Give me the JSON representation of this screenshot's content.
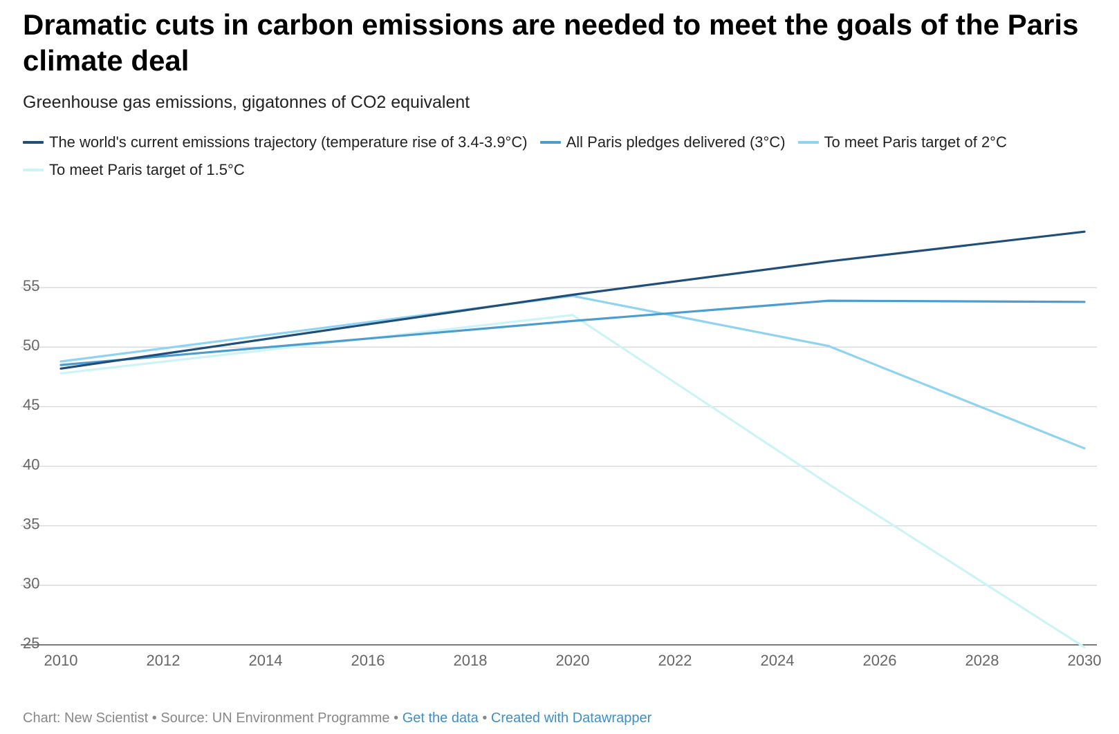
{
  "header": {
    "title": "Dramatic cuts in carbon emissions are needed to meet the goals of the Paris climate deal",
    "subtitle": "Greenhouse gas emissions, gigatonnes of CO2 equivalent"
  },
  "footer": {
    "chart_credit": "Chart: New Scientist",
    "source": "Source: UN Environment Programme",
    "get_data_link": "Get the data",
    "created_with_link": "Created with Datawrapper",
    "separator": "•"
  },
  "chart_data": {
    "type": "line",
    "x_ticks": [
      2010,
      2012,
      2014,
      2016,
      2018,
      2020,
      2022,
      2024,
      2026,
      2028,
      2030
    ],
    "y_ticks": [
      25,
      30,
      35,
      40,
      45,
      50,
      55
    ],
    "xlim": [
      2010,
      2030
    ],
    "ylim": [
      25,
      60
    ],
    "grid": true,
    "legend_position": "top",
    "series": [
      {
        "name": "The world's current emissions trajectory (temperature rise of 3.4-3.9°C)",
        "color": "#1f4e79",
        "x": [
          2010,
          2020,
          2025,
          2030
        ],
        "y": [
          48.2,
          54.4,
          57.2,
          59.7
        ]
      },
      {
        "name": "All Paris pledges delivered (3°C)",
        "color": "#4b9ccf",
        "x": [
          2010,
          2020,
          2025,
          2030
        ],
        "y": [
          48.5,
          52.2,
          53.9,
          53.8
        ]
      },
      {
        "name": "To meet Paris target of 2°C",
        "color": "#8ed4f2",
        "x": [
          2010,
          2020,
          2025,
          2030
        ],
        "y": [
          48.8,
          54.3,
          50.1,
          41.5
        ]
      },
      {
        "name": "To meet Paris target of 1.5°C",
        "color": "#ccf3f7",
        "x": [
          2010,
          2020,
          2025,
          2030
        ],
        "y": [
          47.8,
          52.7,
          38.5,
          24.8
        ]
      }
    ]
  }
}
